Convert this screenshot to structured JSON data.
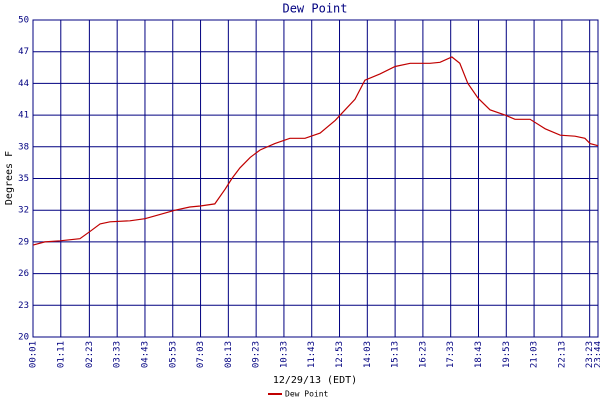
{
  "chart_data": {
    "type": "line",
    "title": "Dew Point",
    "y_label": "Degrees F",
    "x_label": "12/29/13 (EDT)",
    "x": [
      1,
      31,
      69,
      119,
      145,
      170,
      195,
      245,
      283,
      321,
      359,
      396,
      422,
      459,
      485,
      502,
      522,
      548,
      573,
      610,
      648,
      686,
      724,
      762,
      787,
      812,
      837,
      875,
      913,
      951,
      1001,
      1026,
      1056,
      1076,
      1096,
      1122,
      1152,
      1190,
      1215,
      1253,
      1291,
      1329,
      1366,
      1391,
      1404,
      1424
    ],
    "series": [
      {
        "name": "Dew Point",
        "color": "#c00000",
        "values": [
          28.7,
          29.0,
          29.1,
          29.3,
          30.0,
          30.7,
          30.9,
          31.0,
          31.2,
          31.6,
          32.0,
          32.3,
          32.4,
          32.6,
          34.0,
          35.0,
          36.0,
          37.0,
          37.7,
          38.3,
          38.8,
          38.8,
          39.3,
          40.5,
          41.5,
          42.5,
          44.3,
          44.9,
          45.6,
          45.9,
          45.9,
          46.0,
          46.5,
          45.9,
          44.0,
          42.6,
          41.5,
          41.0,
          40.6,
          40.6,
          39.7,
          39.1,
          39.0,
          38.8,
          38.3,
          38.1
        ]
      }
    ],
    "xlim": [
      1,
      1424
    ],
    "xticks": [
      {
        "value": 1,
        "label": "00:01"
      },
      {
        "value": 71,
        "label": "01:11"
      },
      {
        "value": 143,
        "label": "02:23"
      },
      {
        "value": 213,
        "label": "03:33"
      },
      {
        "value": 283,
        "label": "04:43"
      },
      {
        "value": 353,
        "label": "05:53"
      },
      {
        "value": 423,
        "label": "07:03"
      },
      {
        "value": 493,
        "label": "08:13"
      },
      {
        "value": 563,
        "label": "09:23"
      },
      {
        "value": 633,
        "label": "10:33"
      },
      {
        "value": 703,
        "label": "11:43"
      },
      {
        "value": 773,
        "label": "12:53"
      },
      {
        "value": 843,
        "label": "14:03"
      },
      {
        "value": 913,
        "label": "15:13"
      },
      {
        "value": 983,
        "label": "16:23"
      },
      {
        "value": 1053,
        "label": "17:33"
      },
      {
        "value": 1123,
        "label": "18:43"
      },
      {
        "value": 1193,
        "label": "19:53"
      },
      {
        "value": 1263,
        "label": "21:03"
      },
      {
        "value": 1333,
        "label": "22:13"
      },
      {
        "value": 1403,
        "label": "23:23"
      },
      {
        "value": 1424,
        "label": "23:44"
      }
    ],
    "ylim": [
      20,
      50
    ],
    "yticks": [
      20,
      23,
      26,
      29,
      32,
      35,
      38,
      41,
      44,
      47,
      50
    ],
    "grid": true
  }
}
